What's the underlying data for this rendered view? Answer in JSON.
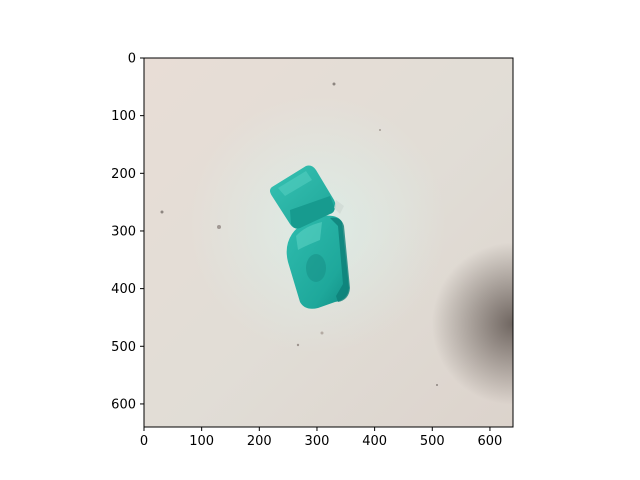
{
  "figure": {
    "x_ticks": [
      "0",
      "100",
      "200",
      "300",
      "400",
      "500",
      "600"
    ],
    "y_ticks": [
      "0",
      "100",
      "200",
      "300",
      "400",
      "500",
      "600"
    ],
    "x_tick_values": [
      0,
      100,
      200,
      300,
      400,
      500,
      600
    ],
    "y_tick_values": [
      0,
      100,
      200,
      300,
      400,
      500,
      600
    ],
    "x_range": [
      0,
      640
    ],
    "y_range": [
      0,
      640
    ],
    "y_axis_inverted": true
  },
  "scene": {
    "background_color": "#e3dad3",
    "object_color": "#22b3a6",
    "object_dark_color": "#0f8c84"
  }
}
